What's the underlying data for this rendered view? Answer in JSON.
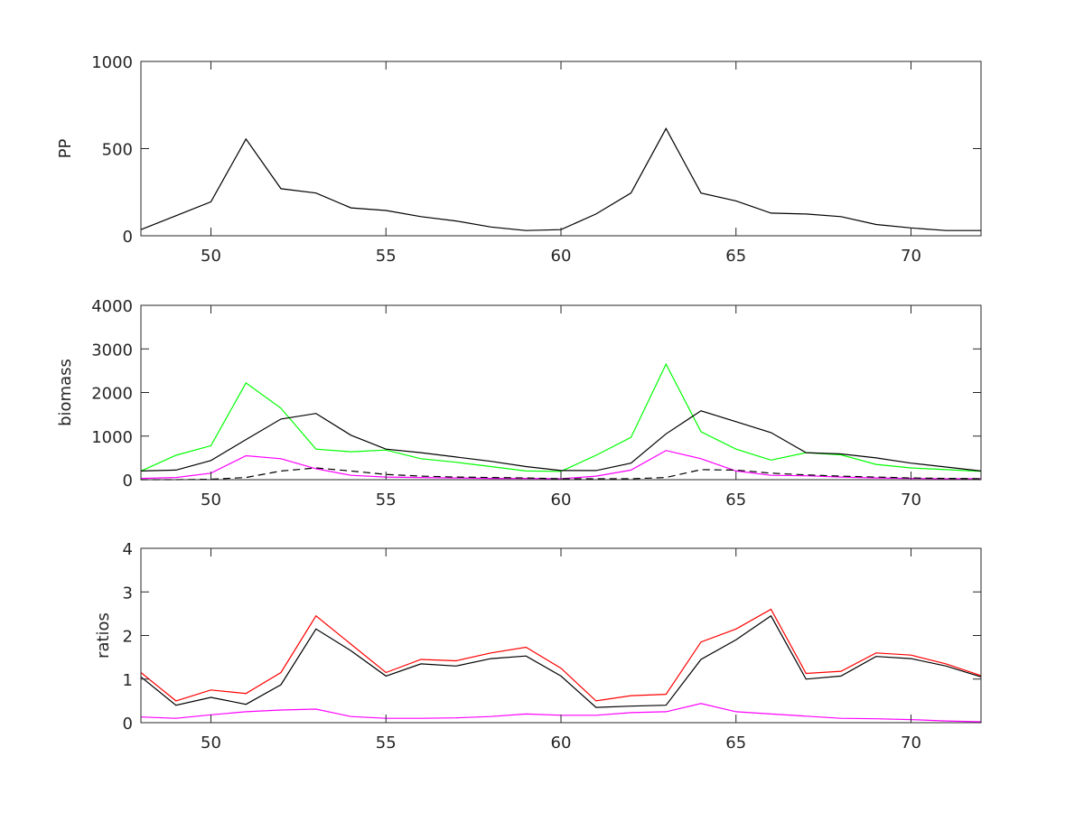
{
  "chart_data": [
    {
      "type": "line",
      "ylabel": "PP",
      "xlim": [
        48,
        72
      ],
      "ylim": [
        0,
        1000
      ],
      "xticks": [
        50,
        55,
        60,
        65,
        70
      ],
      "yticks": [
        0,
        500,
        1000
      ],
      "x": [
        48,
        49,
        50,
        51,
        52,
        53,
        54,
        55,
        56,
        57,
        58,
        59,
        60,
        61,
        62,
        63,
        64,
        65,
        66,
        67,
        68,
        69,
        70,
        71,
        72
      ],
      "series": [
        {
          "name": "PP",
          "color": "#000000",
          "dash": false,
          "values": [
            35,
            115,
            195,
            555,
            270,
            245,
            160,
            145,
            110,
            85,
            50,
            30,
            35,
            125,
            245,
            615,
            245,
            200,
            130,
            125,
            110,
            65,
            45,
            30,
            30
          ]
        }
      ]
    },
    {
      "type": "line",
      "ylabel": "biomass",
      "xlim": [
        48,
        72
      ],
      "ylim": [
        0,
        4000
      ],
      "xticks": [
        50,
        55,
        60,
        65,
        70
      ],
      "yticks": [
        0,
        1000,
        2000,
        3000,
        4000
      ],
      "x": [
        48,
        49,
        50,
        51,
        52,
        53,
        54,
        55,
        56,
        57,
        58,
        59,
        60,
        61,
        62,
        63,
        64,
        65,
        66,
        67,
        68,
        69,
        70,
        71,
        72
      ],
      "series": [
        {
          "name": "green",
          "color": "#00ff00",
          "dash": false,
          "values": [
            200,
            560,
            780,
            2220,
            1640,
            700,
            640,
            680,
            480,
            400,
            300,
            200,
            190,
            560,
            970,
            2650,
            1100,
            700,
            450,
            620,
            570,
            350,
            270,
            230,
            190
          ]
        },
        {
          "name": "black",
          "color": "#000000",
          "dash": false,
          "values": [
            200,
            220,
            440,
            920,
            1390,
            1520,
            1020,
            700,
            620,
            520,
            420,
            300,
            210,
            210,
            380,
            1050,
            1580,
            1330,
            1080,
            620,
            590,
            500,
            380,
            290,
            200
          ]
        },
        {
          "name": "magenta",
          "color": "#ff00ff",
          "dash": false,
          "values": [
            30,
            50,
            150,
            550,
            480,
            250,
            100,
            60,
            50,
            40,
            30,
            30,
            20,
            80,
            220,
            670,
            480,
            200,
            100,
            90,
            60,
            40,
            30,
            20,
            20
          ]
        },
        {
          "name": "black-dashed",
          "color": "#000000",
          "dash": true,
          "values": [
            0,
            0,
            10,
            50,
            200,
            270,
            200,
            120,
            80,
            60,
            50,
            40,
            20,
            20,
            20,
            50,
            230,
            220,
            150,
            110,
            80,
            60,
            40,
            30,
            20
          ]
        }
      ]
    },
    {
      "type": "line",
      "ylabel": "ratios",
      "xlim": [
        48,
        72
      ],
      "ylim": [
        0,
        4
      ],
      "xticks": [
        50,
        55,
        60,
        65,
        70
      ],
      "yticks": [
        0,
        1,
        2,
        3,
        4
      ],
      "x": [
        48,
        49,
        50,
        51,
        52,
        53,
        54,
        55,
        56,
        57,
        58,
        59,
        60,
        61,
        62,
        63,
        64,
        65,
        66,
        67,
        68,
        69,
        70,
        71,
        72
      ],
      "series": [
        {
          "name": "red",
          "color": "#ff0000",
          "dash": false,
          "values": [
            1.15,
            0.5,
            0.75,
            0.67,
            1.15,
            2.45,
            1.8,
            1.15,
            1.45,
            1.42,
            1.6,
            1.73,
            1.25,
            0.5,
            0.62,
            0.65,
            1.85,
            2.15,
            2.6,
            1.13,
            1.18,
            1.6,
            1.55,
            1.35,
            1.08
          ]
        },
        {
          "name": "black",
          "color": "#000000",
          "dash": false,
          "values": [
            1.05,
            0.4,
            0.58,
            0.42,
            0.87,
            2.15,
            1.65,
            1.07,
            1.35,
            1.3,
            1.47,
            1.53,
            1.07,
            0.35,
            0.38,
            0.4,
            1.45,
            1.9,
            2.45,
            1.0,
            1.07,
            1.52,
            1.47,
            1.3,
            1.05
          ]
        },
        {
          "name": "magenta",
          "color": "#ff00ff",
          "dash": false,
          "values": [
            0.13,
            0.1,
            0.18,
            0.25,
            0.29,
            0.31,
            0.14,
            0.1,
            0.1,
            0.11,
            0.14,
            0.2,
            0.17,
            0.17,
            0.23,
            0.25,
            0.44,
            0.25,
            0.2,
            0.15,
            0.1,
            0.09,
            0.07,
            0.04,
            0.02
          ]
        }
      ]
    }
  ]
}
